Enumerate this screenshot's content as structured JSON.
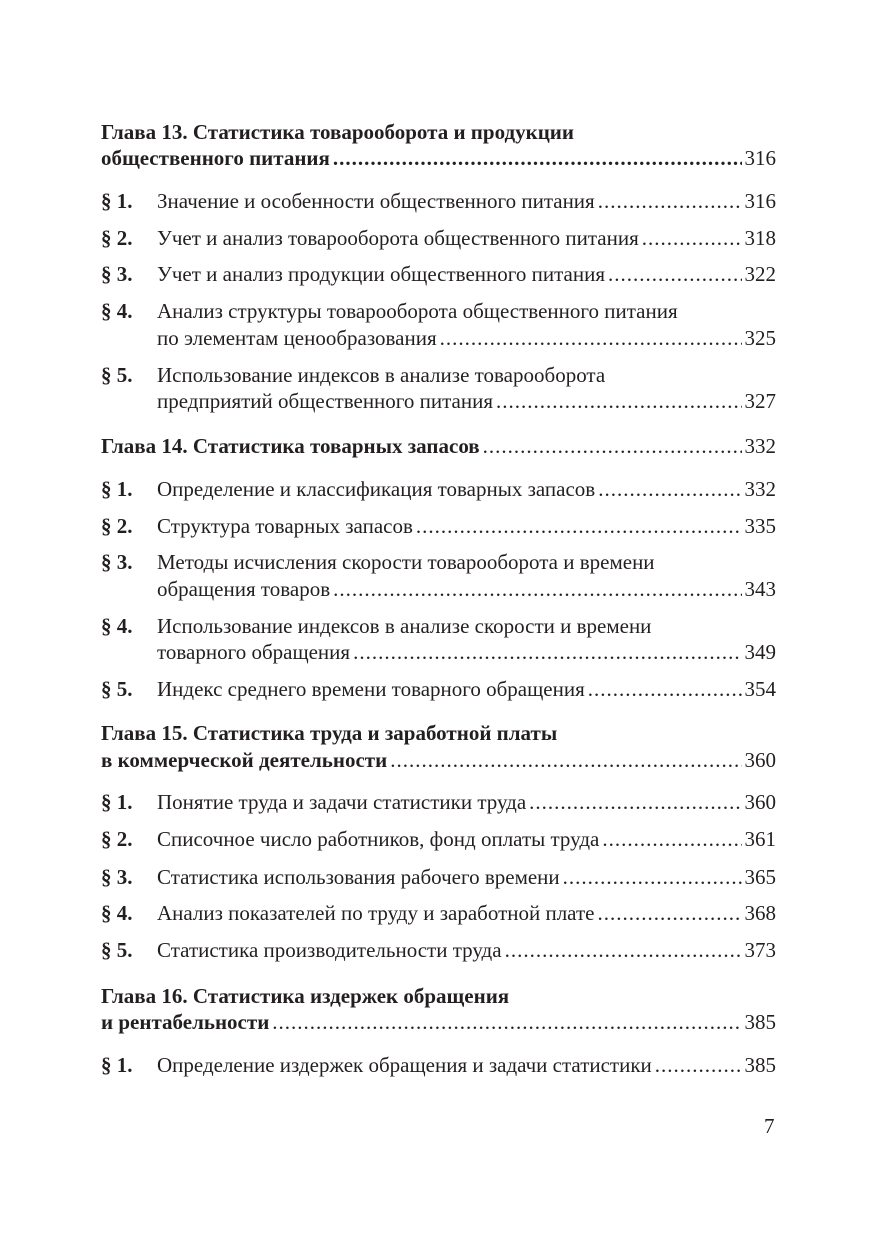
{
  "chapters": [
    {
      "title_line1": "Глава 13. Статистика товарооборота и продукции",
      "title_line2": "общественного питания",
      "page": "316",
      "sections": [
        {
          "num": "§ 1.",
          "line1": "Значение и особенности общественного питания",
          "page": "316"
        },
        {
          "num": "§ 2.",
          "line1": "Учет и анализ товарооборота общественного питания",
          "page": "318"
        },
        {
          "num": "§ 3.",
          "line1": "Учет и анализ продукции общественного питания",
          "page": "322"
        },
        {
          "num": "§ 4.",
          "line1": "Анализ структуры товарооборота общественного питания",
          "line2": "по элементам ценообразования",
          "page": "325"
        },
        {
          "num": "§ 5.",
          "line1": "Использование индексов в анализе товарооборота",
          "line2": "предприятий общественного питания",
          "page": "327"
        }
      ]
    },
    {
      "title_line1": "Глава 14. Статистика товарных запасов",
      "page": "332",
      "sections": [
        {
          "num": "§ 1.",
          "line1": "Определение и классификация товарных запасов",
          "page": "332"
        },
        {
          "num": "§ 2.",
          "line1": "Структура товарных запасов",
          "page": "335"
        },
        {
          "num": "§ 3.",
          "line1": "Методы исчисления скорости товарооборота и времени",
          "line2": "обращения товаров",
          "page": "343"
        },
        {
          "num": "§ 4.",
          "line1": "Использование индексов в анализе скорости и времени",
          "line2": "товарного обращения",
          "page": "349"
        },
        {
          "num": "§ 5.",
          "line1": "Индекс среднего времени товарного обращения",
          "page": "354"
        }
      ]
    },
    {
      "title_line1": "Глава 15. Статистика труда и заработной платы",
      "title_line2": "в коммерческой деятельности",
      "page": "360",
      "sections": [
        {
          "num": "§ 1.",
          "line1": "Понятие труда и задачи статистики труда",
          "page": "360"
        },
        {
          "num": "§ 2.",
          "line1": "Списочное число работников, фонд оплаты труда",
          "page": "361"
        },
        {
          "num": "§ 3.",
          "line1": "Статистика использования рабочего времени",
          "page": "365"
        },
        {
          "num": "§ 4.",
          "line1": "Анализ показателей по труду и заработной плате",
          "page": "368"
        },
        {
          "num": "§ 5.",
          "line1": "Статистика производительности труда",
          "page": "373"
        }
      ]
    },
    {
      "title_line1": "Глава 16. Статистика издержек обращения",
      "title_line2": "и рентабельности",
      "page": "385",
      "sections": [
        {
          "num": "§ 1.",
          "line1": "Определение издержек обращения и задачи статистики",
          "page": "385"
        }
      ]
    }
  ],
  "page_number": "7"
}
